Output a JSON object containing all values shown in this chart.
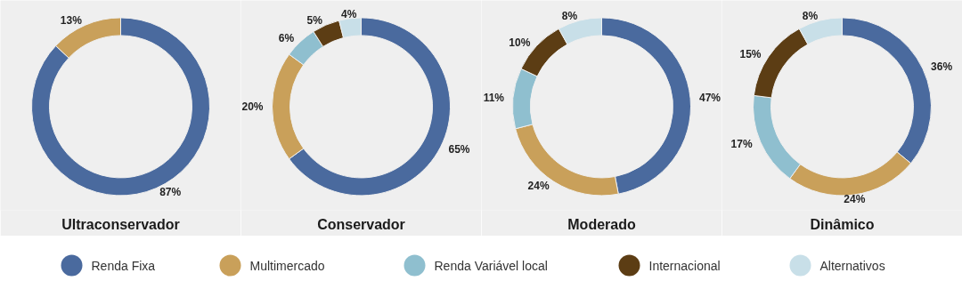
{
  "chart_data": [
    {
      "type": "donut",
      "title": "Ultraconservador",
      "categories": [
        "Renda Fixa",
        "Multimercado",
        "Renda Variável local",
        "Internacional",
        "Alternativos"
      ],
      "values": [
        87,
        13,
        0,
        0,
        0
      ],
      "colors": [
        "#4a6a9e",
        "#c9a05a",
        "#8fbfcf",
        "#5c3d14",
        "#c8dfe8"
      ],
      "value_labels": [
        "87%",
        "13%",
        null,
        null,
        null
      ],
      "legend": "bottom"
    },
    {
      "type": "donut",
      "title": "Conservador",
      "values": [
        65,
        20,
        6,
        5,
        4
      ],
      "colors": [
        "#4a6a9e",
        "#c9a05a",
        "#8fbfcf",
        "#5c3d14",
        "#c8dfe8"
      ],
      "value_labels": [
        "65%",
        "20%",
        "6%",
        "5%",
        "4%"
      ]
    },
    {
      "type": "donut",
      "title": "Moderado",
      "values": [
        47,
        24,
        11,
        10,
        8
      ],
      "colors": [
        "#4a6a9e",
        "#c9a05a",
        "#8fbfcf",
        "#5c3d14",
        "#c8dfe8"
      ],
      "value_labels": [
        "47%",
        "24%",
        "11%",
        "10%",
        "8%"
      ]
    },
    {
      "type": "donut",
      "title": "Dinâmico",
      "values": [
        36,
        24,
        17,
        15,
        8
      ],
      "colors": [
        "#4a6a9e",
        "#c9a05a",
        "#8fbfcf",
        "#5c3d14",
        "#c8dfe8"
      ],
      "value_labels": [
        "36%",
        "24%",
        "17%",
        "15%",
        "8%"
      ]
    }
  ]
}
